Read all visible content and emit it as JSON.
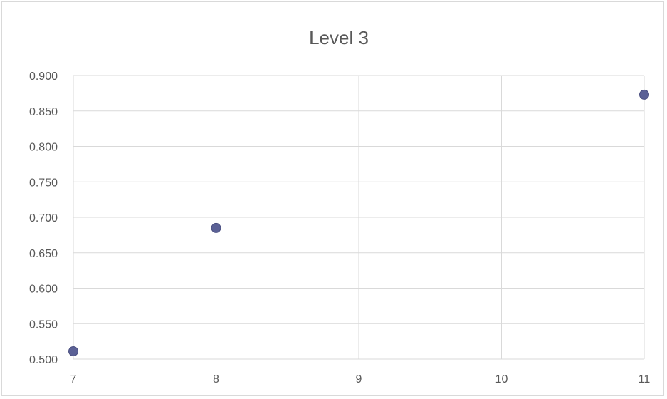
{
  "chart_data": {
    "type": "scatter",
    "title": "Level 3",
    "xlabel": "",
    "ylabel": "",
    "x_ticks": [
      "7",
      "8",
      "9",
      "10",
      "11"
    ],
    "y_ticks": [
      "0.500",
      "0.550",
      "0.600",
      "0.650",
      "0.700",
      "0.750",
      "0.800",
      "0.850",
      "0.900"
    ],
    "xlim": [
      7,
      11
    ],
    "ylim": [
      0.5,
      0.9
    ],
    "grid": true,
    "legend": "none",
    "series": [
      {
        "color": "#5b6196",
        "points": [
          {
            "x": 7,
            "y": 0.511
          },
          {
            "x": 8,
            "y": 0.685
          },
          {
            "x": 11,
            "y": 0.873
          }
        ]
      }
    ]
  }
}
